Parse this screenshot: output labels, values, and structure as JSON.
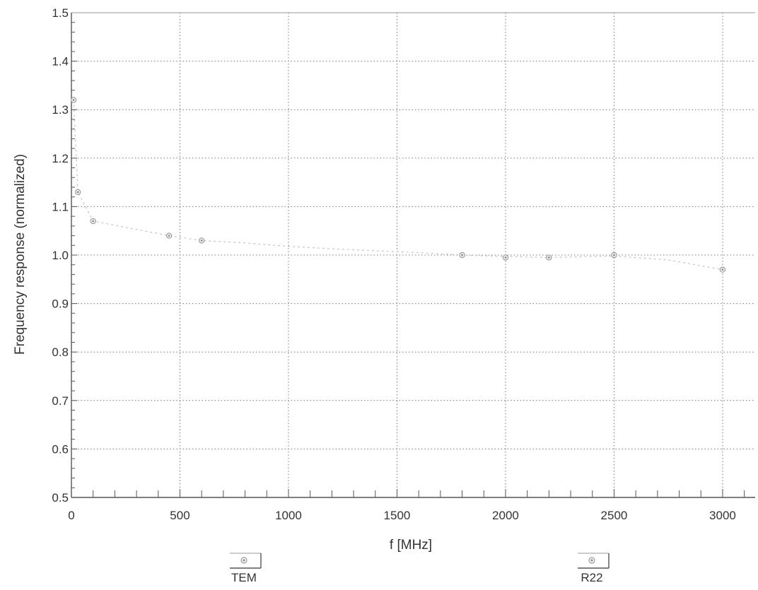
{
  "chart_data": {
    "type": "scatter",
    "xlabel": "f [MHz]",
    "ylabel": "Frequency response (normalized)",
    "xlim": [
      0,
      3150
    ],
    "ylim": [
      0.5,
      1.5
    ],
    "x_ticks": [
      0,
      500,
      1000,
      1500,
      2000,
      2500,
      3000
    ],
    "x_tick_labels": [
      "0",
      "500",
      "1000",
      "1500",
      "2000",
      "2500",
      "3000"
    ],
    "y_ticks": [
      0.5,
      0.6,
      0.7,
      0.8,
      0.9,
      1.0,
      1.1,
      1.2,
      1.3,
      1.4,
      1.5
    ],
    "y_tick_labels": [
      "0.5",
      "0.6",
      "0.7",
      "0.8",
      "0.9",
      "1.0",
      "1.1",
      "1.2",
      "1.3",
      "1.4",
      "1.5"
    ],
    "grid": true,
    "series": [
      {
        "name": "TEM",
        "x": [
          10,
          30,
          100,
          450,
          600
        ],
        "y": [
          1.32,
          1.13,
          1.07,
          1.04,
          1.03
        ]
      },
      {
        "name": "R22",
        "x": [
          1800,
          2000,
          2200,
          2500,
          3000
        ],
        "y": [
          1.0,
          0.995,
          0.995,
          1.0,
          0.97
        ]
      }
    ],
    "trend": {
      "x": [
        10,
        30,
        100,
        450,
        600,
        800,
        1000,
        1200,
        1400,
        1600,
        1800,
        2000,
        2200,
        2500,
        2750,
        3000
      ],
      "y": [
        1.32,
        1.13,
        1.07,
        1.04,
        1.03,
        1.025,
        1.018,
        1.013,
        1.009,
        1.005,
        1.0,
        0.997,
        0.995,
        0.998,
        0.99,
        0.97
      ]
    },
    "colors": {
      "marker": "#9a9a9a",
      "grid": "#777777",
      "axis": "#555555",
      "trend": "#c4c4c4"
    }
  }
}
